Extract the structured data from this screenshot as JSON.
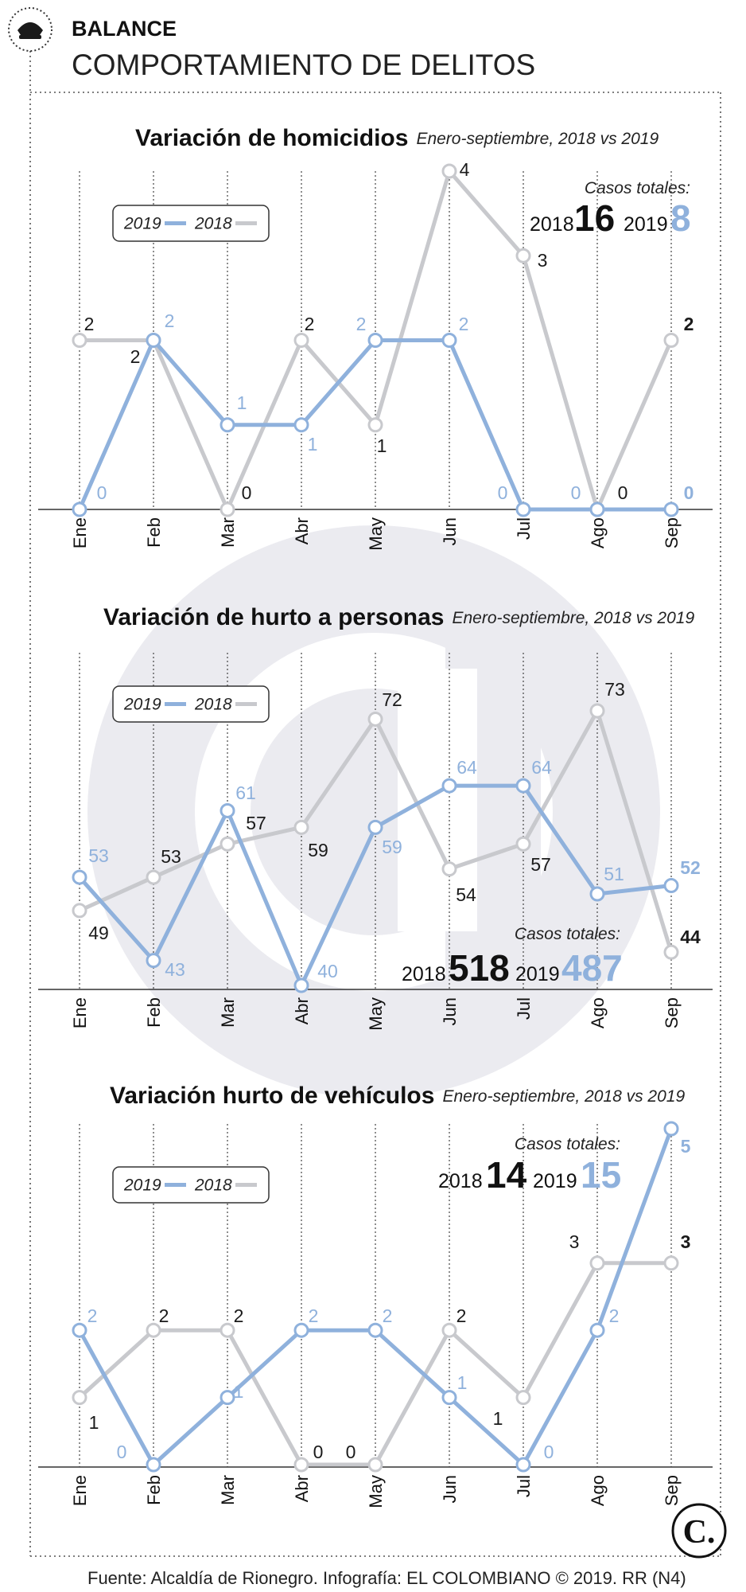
{
  "header": {
    "kicker": "BALANCE",
    "title": "COMPORTAMIENTO DE DELITOS",
    "icon": "police-cap-icon"
  },
  "colors": {
    "series_2019": "#8fb1dc",
    "series_2018": "#c8c9cd",
    "watermark": "#ebebf0",
    "text": "#111111"
  },
  "footer": {
    "source": "Fuente: Alcaldía de Rionegro. Infografía: EL COLOMBIANO © 2019. RR (N4)",
    "logo_text": "C.",
    "logo_icon": "el-colombiano-logo"
  },
  "chart_data": [
    {
      "type": "line",
      "title": "Variación de homicidios",
      "subtitle": "Enero-septiembre, 2018 vs 2019",
      "categories": [
        "Ene",
        "Feb",
        "Mar",
        "Abr",
        "May",
        "Jun",
        "Jul",
        "Ago",
        "Sep"
      ],
      "series": [
        {
          "name": "2019",
          "values": [
            0,
            2,
            1,
            1,
            2,
            2,
            0,
            0,
            0
          ],
          "color": "#8fb1dc"
        },
        {
          "name": "2018",
          "values": [
            2,
            2,
            0,
            2,
            1,
            4,
            3,
            0,
            2
          ],
          "color": "#c8c9cd"
        }
      ],
      "legend": {
        "items": [
          "2019",
          "2018"
        ],
        "position": "top-left"
      },
      "totals": {
        "label": "Casos totales:",
        "year_a": "2018",
        "value_a": "16",
        "year_b": "2019",
        "value_b": "8"
      },
      "ylim": [
        0,
        4
      ],
      "grid": "vertical dotted"
    },
    {
      "type": "line",
      "title": "Variación de hurto a personas",
      "subtitle": "Enero-septiembre, 2018 vs 2019",
      "categories": [
        "Ene",
        "Feb",
        "Mar",
        "Abr",
        "May",
        "Jun",
        "Jul",
        "Ago",
        "Sep"
      ],
      "series": [
        {
          "name": "2019",
          "values": [
            53,
            43,
            61,
            40,
            59,
            64,
            64,
            51,
            52
          ],
          "color": "#8fb1dc"
        },
        {
          "name": "2018",
          "values": [
            49,
            53,
            57,
            59,
            72,
            54,
            57,
            73,
            44
          ],
          "color": "#c8c9cd"
        }
      ],
      "legend": {
        "items": [
          "2019",
          "2018"
        ],
        "position": "top-left"
      },
      "totals": {
        "label": "Casos totales:",
        "year_a": "2018",
        "value_a": "518",
        "year_b": "2019",
        "value_b": "487"
      },
      "ylim": [
        40,
        73
      ],
      "grid": "vertical dotted"
    },
    {
      "type": "line",
      "title": "Variación hurto de vehículos",
      "subtitle": "Enero-septiembre, 2018 vs 2019",
      "categories": [
        "Ene",
        "Feb",
        "Mar",
        "Abr",
        "May",
        "Jun",
        "Jul",
        "Ago",
        "Sep"
      ],
      "series": [
        {
          "name": "2019",
          "values": [
            2,
            0,
            1,
            2,
            2,
            1,
            0,
            2,
            5
          ],
          "color": "#8fb1dc"
        },
        {
          "name": "2018",
          "values": [
            1,
            2,
            2,
            0,
            0,
            2,
            1,
            3,
            3
          ],
          "color": "#c8c9cd"
        }
      ],
      "legend": {
        "items": [
          "2019",
          "2018"
        ],
        "position": "top-left"
      },
      "totals": {
        "label": "Casos totales:",
        "year_a": "2018",
        "value_a": "14",
        "year_b": "2019",
        "value_b": "15"
      },
      "ylim": [
        0,
        5
      ],
      "grid": "vertical dotted"
    }
  ]
}
